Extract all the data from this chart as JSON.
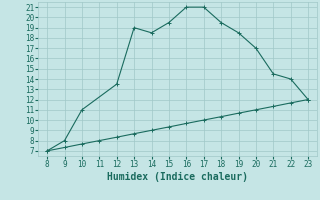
{
  "upper_x": [
    8,
    9,
    10,
    12,
    13,
    14,
    15,
    16,
    17,
    18,
    19,
    20,
    21,
    22,
    23
  ],
  "upper_y": [
    7,
    8,
    11,
    13.5,
    19,
    18.5,
    19.5,
    21,
    21,
    19.5,
    18.5,
    17,
    14.5,
    14,
    12
  ],
  "lower_x": [
    8,
    9,
    10,
    11,
    12,
    13,
    14,
    15,
    16,
    17,
    18,
    19,
    20,
    21,
    22,
    23
  ],
  "lower_y": [
    7,
    7.33,
    7.67,
    8.0,
    8.33,
    8.67,
    9.0,
    9.33,
    9.67,
    10.0,
    10.33,
    10.67,
    11.0,
    11.33,
    11.67,
    12.0
  ],
  "line_color": "#1a6b5e",
  "bg_color": "#c5e5e5",
  "grid_color": "#a0c8c8",
  "xlabel": "Humidex (Indice chaleur)",
  "xlim": [
    7.5,
    23.5
  ],
  "ylim": [
    6.5,
    21.5
  ],
  "xticks": [
    8,
    9,
    10,
    11,
    12,
    13,
    14,
    15,
    16,
    17,
    18,
    19,
    20,
    21,
    22,
    23
  ],
  "yticks": [
    7,
    8,
    9,
    10,
    11,
    12,
    13,
    14,
    15,
    16,
    17,
    18,
    19,
    20,
    21
  ],
  "tick_fontsize": 5.5,
  "xlabel_fontsize": 7,
  "marker_size": 3,
  "line_width": 0.8
}
